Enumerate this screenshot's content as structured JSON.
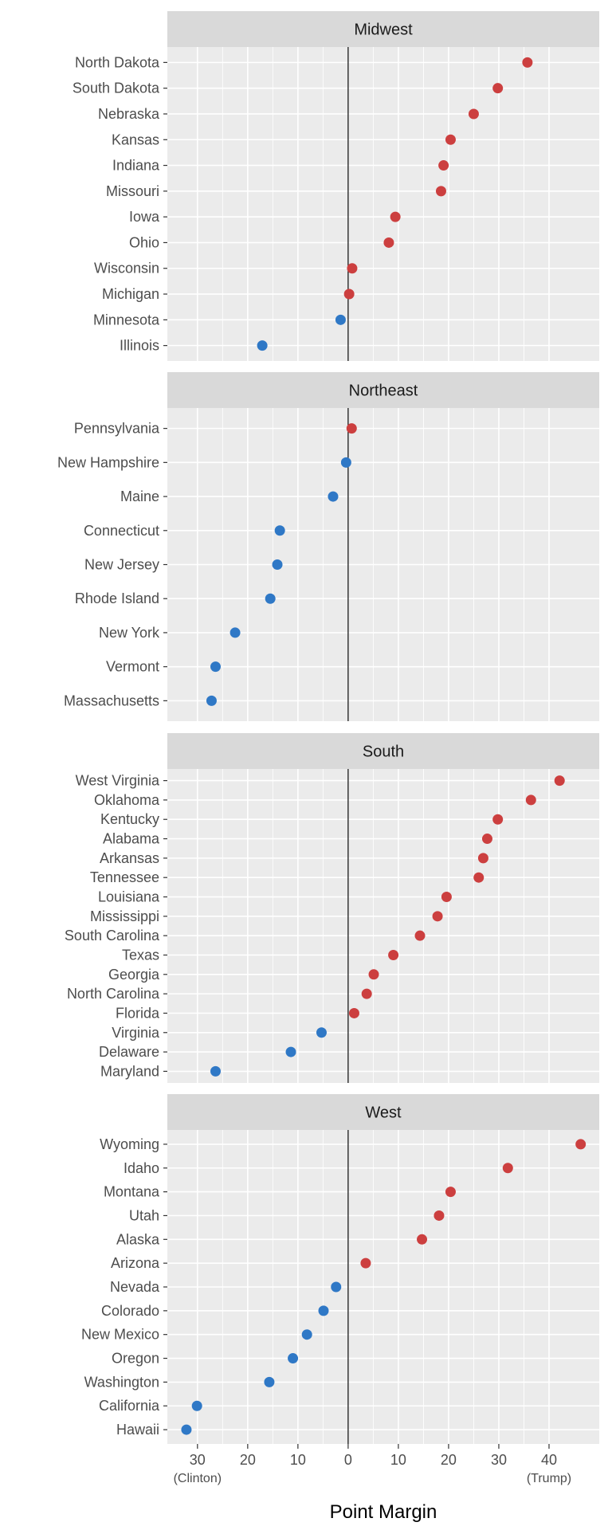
{
  "chart_data": {
    "type": "scatter",
    "xlabel": "Point Margin",
    "x_ticks": [
      {
        "value": -30,
        "label": "30"
      },
      {
        "value": -20,
        "label": "20"
      },
      {
        "value": -10,
        "label": "10"
      },
      {
        "value": 0,
        "label": "0"
      },
      {
        "value": 10,
        "label": "10"
      },
      {
        "value": 20,
        "label": "20"
      },
      {
        "value": 30,
        "label": "30"
      },
      {
        "value": 40,
        "label": "40"
      }
    ],
    "x_sub_labels": [
      {
        "value": -30,
        "label": "(Clinton)"
      },
      {
        "value": 40,
        "label": "(Trump)"
      }
    ],
    "xlim": [
      -36,
      50
    ],
    "grid": true,
    "colors": {
      "positive": "#cc3f3f",
      "negative": "#2f78c6"
    },
    "panels": [
      {
        "name": "Midwest",
        "points": [
          {
            "state": "North Dakota",
            "margin": 35.7
          },
          {
            "state": "South Dakota",
            "margin": 29.8
          },
          {
            "state": "Nebraska",
            "margin": 25.0
          },
          {
            "state": "Kansas",
            "margin": 20.4
          },
          {
            "state": "Indiana",
            "margin": 19.0
          },
          {
            "state": "Missouri",
            "margin": 18.5
          },
          {
            "state": "Iowa",
            "margin": 9.4
          },
          {
            "state": "Ohio",
            "margin": 8.1
          },
          {
            "state": "Wisconsin",
            "margin": 0.8
          },
          {
            "state": "Michigan",
            "margin": 0.2
          },
          {
            "state": "Minnesota",
            "margin": -1.5
          },
          {
            "state": "Illinois",
            "margin": -17.1
          }
        ]
      },
      {
        "name": "Northeast",
        "points": [
          {
            "state": "Pennsylvania",
            "margin": 0.7
          },
          {
            "state": "New Hampshire",
            "margin": -0.4
          },
          {
            "state": "Maine",
            "margin": -3.0
          },
          {
            "state": "Connecticut",
            "margin": -13.6
          },
          {
            "state": "New Jersey",
            "margin": -14.1
          },
          {
            "state": "Rhode Island",
            "margin": -15.5
          },
          {
            "state": "New York",
            "margin": -22.5
          },
          {
            "state": "Vermont",
            "margin": -26.4
          },
          {
            "state": "Massachusetts",
            "margin": -27.2
          }
        ]
      },
      {
        "name": "South",
        "points": [
          {
            "state": "West Virginia",
            "margin": 42.1
          },
          {
            "state": "Oklahoma",
            "margin": 36.4
          },
          {
            "state": "Kentucky",
            "margin": 29.8
          },
          {
            "state": "Alabama",
            "margin": 27.7
          },
          {
            "state": "Arkansas",
            "margin": 26.9
          },
          {
            "state": "Tennessee",
            "margin": 26.0
          },
          {
            "state": "Louisiana",
            "margin": 19.6
          },
          {
            "state": "Mississippi",
            "margin": 17.8
          },
          {
            "state": "South Carolina",
            "margin": 14.3
          },
          {
            "state": "Texas",
            "margin": 9.0
          },
          {
            "state": "Georgia",
            "margin": 5.1
          },
          {
            "state": "North Carolina",
            "margin": 3.7
          },
          {
            "state": "Florida",
            "margin": 1.2
          },
          {
            "state": "Virginia",
            "margin": -5.3
          },
          {
            "state": "Delaware",
            "margin": -11.4
          },
          {
            "state": "Maryland",
            "margin": -26.4
          }
        ]
      },
      {
        "name": "West",
        "points": [
          {
            "state": "Wyoming",
            "margin": 46.3
          },
          {
            "state": "Idaho",
            "margin": 31.8
          },
          {
            "state": "Montana",
            "margin": 20.4
          },
          {
            "state": "Utah",
            "margin": 18.1
          },
          {
            "state": "Alaska",
            "margin": 14.7
          },
          {
            "state": "Arizona",
            "margin": 3.5
          },
          {
            "state": "Nevada",
            "margin": -2.4
          },
          {
            "state": "Colorado",
            "margin": -4.9
          },
          {
            "state": "New Mexico",
            "margin": -8.2
          },
          {
            "state": "Oregon",
            "margin": -11.0
          },
          {
            "state": "Washington",
            "margin": -15.7
          },
          {
            "state": "California",
            "margin": -30.1
          },
          {
            "state": "Hawaii",
            "margin": -32.2
          }
        ]
      }
    ]
  }
}
